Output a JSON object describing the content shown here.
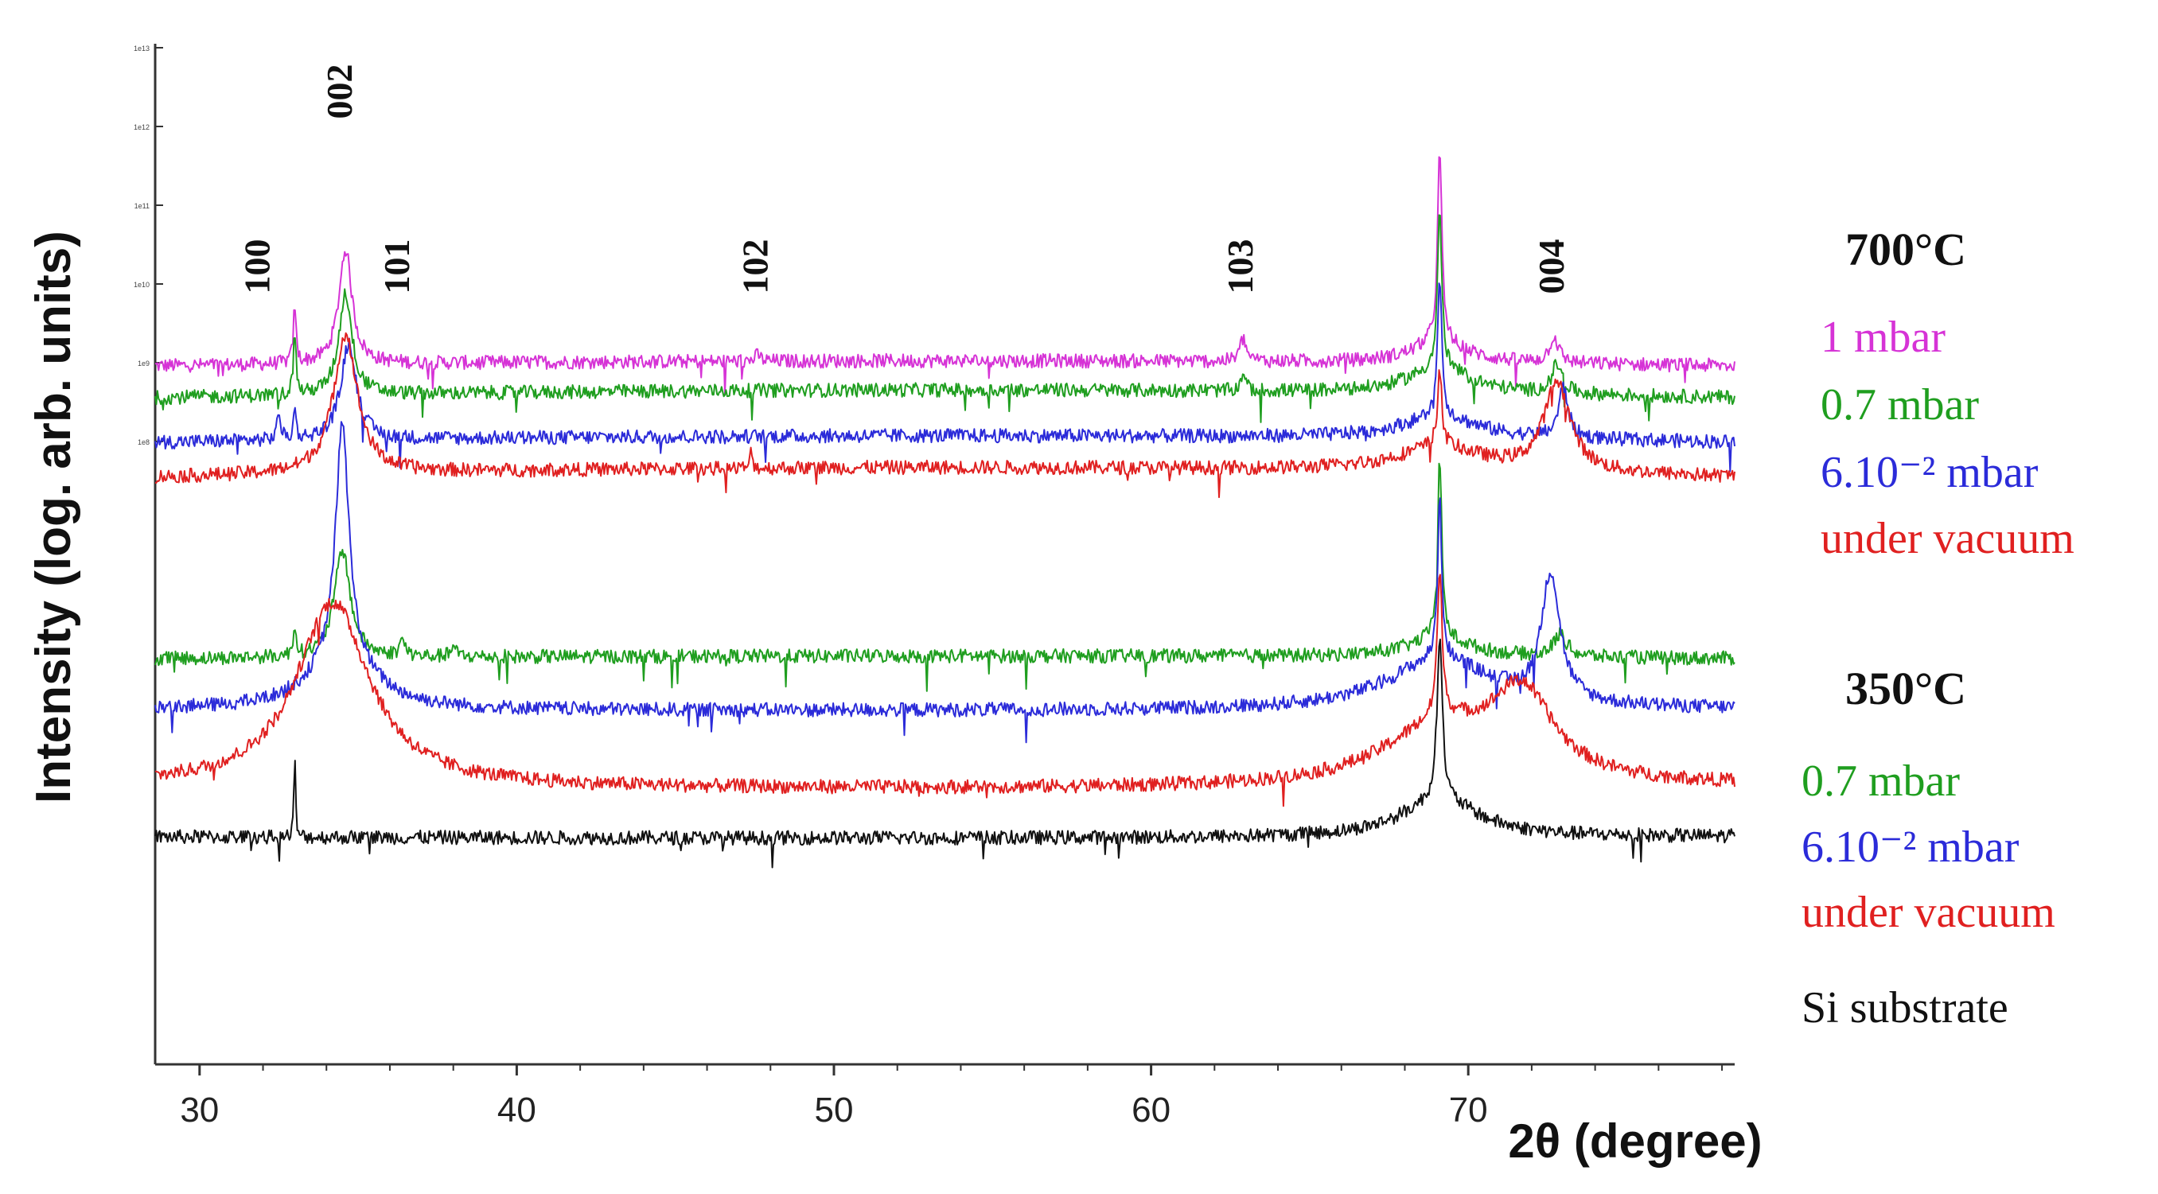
{
  "chart_data": {
    "type": "line",
    "title": "",
    "xlabel": "2θ (degree)",
    "ylabel": "Intensity (log. arb. units)",
    "xlim": [
      28.6,
      78.4
    ],
    "x_ticks": [
      30,
      40,
      50,
      60,
      70
    ],
    "y_scale": "log (arbitrary units, curves vertically offset)",
    "y_small_tick_labels": [
      "1e13",
      "1e12",
      "1e11",
      "1e10",
      "1e9",
      "1e8"
    ],
    "reflections": [
      {
        "label": "100",
        "x": 31.8
      },
      {
        "label": "002",
        "x": 34.4
      },
      {
        "label": "101",
        "x": 36.2
      },
      {
        "label": "102",
        "x": 47.5
      },
      {
        "label": "103",
        "x": 62.8
      },
      {
        "label": "004",
        "x": 72.6
      }
    ],
    "groups": [
      {
        "label": "700°C"
      },
      {
        "label": "350°C"
      }
    ],
    "series": [
      {
        "name": "1 mbar",
        "group": "700°C",
        "color": "#d633d6",
        "baseline": 0.0,
        "slope": -0.08,
        "peaks": [
          [
            33.0,
            0.05,
            0.9
          ],
          [
            34.6,
            0.25,
            1.8
          ],
          [
            47.6,
            0.1,
            0.1
          ],
          [
            62.9,
            0.12,
            0.35
          ],
          [
            69.1,
            0.08,
            3.0
          ],
          [
            69.1,
            1.0,
            0.35
          ],
          [
            72.7,
            0.18,
            0.4
          ]
        ]
      },
      {
        "name": "0.7 mbar",
        "group": "700°C",
        "color": "#1f9e1f",
        "baseline": -0.5,
        "slope": -0.12,
        "peaks": [
          [
            33.0,
            0.05,
            1.0
          ],
          [
            34.6,
            0.25,
            1.6
          ],
          [
            62.9,
            0.08,
            0.3
          ],
          [
            69.1,
            0.08,
            2.5
          ],
          [
            69.1,
            1.2,
            0.4
          ],
          [
            72.8,
            0.2,
            0.45
          ]
        ]
      },
      {
        "name": "6.10⁻² mbar",
        "group": "700°C",
        "color": "#2b2bd9",
        "baseline": -1.2,
        "slope": -0.1,
        "peaks": [
          [
            32.5,
            0.06,
            0.45
          ],
          [
            33.0,
            0.05,
            0.45
          ],
          [
            34.7,
            0.3,
            1.5
          ],
          [
            69.1,
            0.08,
            2.2
          ],
          [
            69.1,
            1.5,
            0.35
          ],
          [
            73.0,
            0.18,
            0.8
          ]
        ]
      },
      {
        "name": "under vacuum",
        "group": "700°C",
        "color": "#e02020",
        "baseline": -1.75,
        "slope": -0.15,
        "peaks": [
          [
            34.6,
            0.45,
            2.2
          ],
          [
            47.4,
            0.04,
            0.3
          ],
          [
            69.1,
            0.08,
            1.2
          ],
          [
            69.1,
            1.6,
            0.4
          ],
          [
            72.8,
            0.5,
            1.4
          ]
        ]
      },
      {
        "name": "0.7 mbar",
        "group": "350°C",
        "color": "#1f9e1f",
        "baseline": -4.6,
        "slope": -0.04,
        "peaks": [
          [
            33.0,
            0.05,
            0.5
          ],
          [
            34.5,
            0.3,
            1.7
          ],
          [
            36.4,
            0.1,
            0.25
          ],
          [
            38.0,
            0.1,
            0.15
          ],
          [
            69.1,
            0.08,
            2.8
          ],
          [
            69.1,
            1.2,
            0.3
          ],
          [
            72.9,
            0.25,
            0.35
          ]
        ]
      },
      {
        "name": "6.10⁻² mbar",
        "group": "350°C",
        "color": "#2b2bd9",
        "baseline": -5.4,
        "slope": 0.02,
        "peaks": [
          [
            34.5,
            0.25,
            3.7
          ],
          [
            34.5,
            1.2,
            0.8
          ],
          [
            69.1,
            0.08,
            2.5
          ],
          [
            69.1,
            2.0,
            0.8
          ],
          [
            72.6,
            0.35,
            2.0
          ]
        ]
      },
      {
        "name": "under vacuum",
        "group": "350°C",
        "color": "#e02020",
        "baseline": -6.6,
        "slope": 0.05,
        "peaks": [
          [
            34.2,
            1.4,
            2.9
          ],
          [
            69.1,
            0.1,
            2.2
          ],
          [
            69.1,
            2.2,
            0.9
          ],
          [
            71.7,
            1.2,
            1.3
          ]
        ]
      },
      {
        "name": "Si substrate",
        "group": "350°C",
        "color": "#111111",
        "baseline": -7.4,
        "slope": 0.02,
        "peaks": [
          [
            33.0,
            0.03,
            1.3
          ],
          [
            69.1,
            0.1,
            2.6
          ],
          [
            69.1,
            1.5,
            0.6
          ]
        ]
      }
    ]
  }
}
